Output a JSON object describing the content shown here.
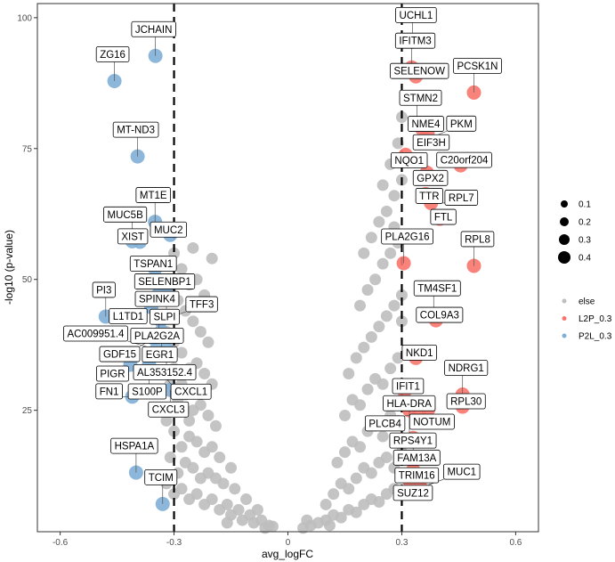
{
  "chart_data": {
    "type": "scatter",
    "title": "",
    "xlabel": "avg_logFC",
    "ylabel": "-log10 (p-value)",
    "xlim": [
      -0.66,
      0.66
    ],
    "ylim": [
      1.8,
      102.7
    ],
    "xticks": [
      -0.6,
      -0.3,
      0,
      0.3,
      0.6
    ],
    "xtick_labels": [
      "-0.6",
      "-0.3",
      "0",
      "0.3",
      "0.6"
    ],
    "yticks": [
      25,
      50,
      75,
      100
    ],
    "ytick_labels": [
      "25",
      "50",
      "75",
      "100"
    ],
    "threshold_lines_x": [
      -0.3,
      0.3
    ],
    "grid": false,
    "legend_position": "right",
    "size_legend": {
      "title": "",
      "values": [
        0.1,
        0.2,
        0.3,
        0.4
      ],
      "labels": [
        "0.1",
        "0.2",
        "0.3",
        "0.4"
      ]
    },
    "color_legend": {
      "title": "",
      "entries": [
        {
          "label": "else",
          "color": "#bebebe"
        },
        {
          "label": "L2P_0.3",
          "color": "#f8766d"
        },
        {
          "label": "P2L_0.3",
          "color": "#7fafd6"
        }
      ]
    },
    "series": [
      {
        "name": "else",
        "color": "#bebebe",
        "points": [
          [
            -0.05,
            3
          ],
          [
            -0.07,
            4
          ],
          [
            -0.09,
            3.5
          ],
          [
            -0.1,
            5
          ],
          [
            -0.12,
            4
          ],
          [
            -0.13,
            6
          ],
          [
            -0.15,
            5
          ],
          [
            -0.16,
            7
          ],
          [
            -0.18,
            6
          ],
          [
            -0.2,
            8
          ],
          [
            -0.22,
            7
          ],
          [
            -0.24,
            9
          ],
          [
            -0.26,
            8
          ],
          [
            -0.28,
            10
          ],
          [
            -0.3,
            9
          ],
          [
            -0.32,
            11
          ],
          [
            -0.11,
            8
          ],
          [
            -0.14,
            10
          ],
          [
            -0.17,
            11
          ],
          [
            -0.19,
            12
          ],
          [
            -0.21,
            13
          ],
          [
            -0.23,
            12
          ],
          [
            -0.25,
            14
          ],
          [
            -0.27,
            15
          ],
          [
            -0.29,
            13
          ],
          [
            -0.31,
            16
          ],
          [
            -0.15,
            14
          ],
          [
            -0.18,
            16
          ],
          [
            -0.2,
            18
          ],
          [
            -0.22,
            17
          ],
          [
            -0.24,
            19
          ],
          [
            -0.26,
            20
          ],
          [
            -0.28,
            18
          ],
          [
            -0.3,
            21
          ],
          [
            -0.32,
            23
          ],
          [
            -0.19,
            22
          ],
          [
            -0.21,
            24
          ],
          [
            -0.23,
            26
          ],
          [
            -0.25,
            25
          ],
          [
            -0.27,
            28
          ],
          [
            -0.29,
            27
          ],
          [
            -0.31,
            30
          ],
          [
            -0.2,
            30
          ],
          [
            -0.22,
            32
          ],
          [
            -0.24,
            34
          ],
          [
            -0.26,
            33
          ],
          [
            -0.28,
            36
          ],
          [
            -0.3,
            38
          ],
          [
            -0.32,
            40
          ],
          [
            -0.21,
            38
          ],
          [
            -0.23,
            40
          ],
          [
            -0.25,
            42
          ],
          [
            -0.27,
            44
          ],
          [
            -0.29,
            46
          ],
          [
            -0.31,
            48
          ],
          [
            -0.2,
            45
          ],
          [
            -0.22,
            47
          ],
          [
            -0.24,
            50
          ],
          [
            -0.26,
            49
          ],
          [
            -0.28,
            52
          ],
          [
            -0.3,
            55
          ],
          [
            -0.2,
            54
          ],
          [
            -0.25,
            56
          ],
          [
            -0.08,
            6
          ],
          [
            -0.06,
            2.5
          ],
          [
            -0.04,
            2.8
          ],
          [
            -0.16,
            3.5
          ],
          [
            -0.28,
            30
          ],
          [
            -0.3,
            33
          ],
          [
            -0.26,
            23
          ],
          [
            0.04,
            2.5
          ],
          [
            0.06,
            3
          ],
          [
            0.08,
            3.5
          ],
          [
            0.1,
            4
          ],
          [
            0.12,
            5
          ],
          [
            0.14,
            4.5
          ],
          [
            0.16,
            6
          ],
          [
            0.18,
            5.5
          ],
          [
            0.2,
            7
          ],
          [
            0.22,
            8
          ],
          [
            0.24,
            7.5
          ],
          [
            0.26,
            9
          ],
          [
            0.28,
            10
          ],
          [
            0.3,
            9
          ],
          [
            0.1,
            7
          ],
          [
            0.12,
            9
          ],
          [
            0.14,
            11
          ],
          [
            0.16,
            10
          ],
          [
            0.18,
            12
          ],
          [
            0.2,
            14
          ],
          [
            0.22,
            13
          ],
          [
            0.24,
            15
          ],
          [
            0.26,
            16
          ],
          [
            0.28,
            14
          ],
          [
            0.3,
            17
          ],
          [
            0.13,
            15
          ],
          [
            0.15,
            17
          ],
          [
            0.17,
            19
          ],
          [
            0.19,
            18
          ],
          [
            0.21,
            21
          ],
          [
            0.23,
            22
          ],
          [
            0.25,
            20
          ],
          [
            0.27,
            24
          ],
          [
            0.29,
            23
          ],
          [
            0.15,
            24
          ],
          [
            0.17,
            27
          ],
          [
            0.19,
            26
          ],
          [
            0.21,
            29
          ],
          [
            0.23,
            31
          ],
          [
            0.25,
            30
          ],
          [
            0.27,
            33
          ],
          [
            0.29,
            35
          ],
          [
            0.16,
            32
          ],
          [
            0.18,
            35
          ],
          [
            0.2,
            37
          ],
          [
            0.22,
            39
          ],
          [
            0.24,
            41
          ],
          [
            0.26,
            43
          ],
          [
            0.28,
            45
          ],
          [
            0.3,
            47
          ],
          [
            0.19,
            45
          ],
          [
            0.21,
            48
          ],
          [
            0.23,
            50
          ],
          [
            0.25,
            53
          ],
          [
            0.27,
            55
          ],
          [
            0.29,
            57
          ],
          [
            0.2,
            55
          ],
          [
            0.22,
            58
          ],
          [
            0.24,
            61
          ],
          [
            0.26,
            63
          ],
          [
            0.28,
            66
          ],
          [
            0.3,
            69
          ],
          [
            0.27,
            72
          ],
          [
            0.29,
            76
          ],
          [
            0.25,
            68
          ],
          [
            0.3,
            81
          ],
          [
            0.28,
            60
          ],
          [
            0.05,
            4
          ],
          [
            0.11,
            3
          ],
          [
            0.3,
            42
          ]
        ]
      },
      {
        "name": "P2L_0.3",
        "color": "#7fafd6",
        "points": [
          {
            "label": "JCHAIN",
            "x": -0.349,
            "y": 92.7
          },
          {
            "label": "ZG16",
            "x": -0.457,
            "y": 87.9
          },
          {
            "label": "MT-ND3",
            "x": -0.396,
            "y": 73.5
          },
          {
            "label": "MT1E",
            "x": -0.35,
            "y": 61
          },
          {
            "label": "MUC2",
            "x": -0.31,
            "y": 58.5
          },
          {
            "label": "MUC5B",
            "x": -0.41,
            "y": 57.3
          },
          {
            "label": "XIST",
            "x": -0.39,
            "y": 57.2
          },
          {
            "label": "TSPAN1",
            "x": -0.35,
            "y": 52
          },
          {
            "label": "SELENBP1",
            "x": -0.32,
            "y": 48.6
          },
          {
            "label": "SPINK4",
            "x": -0.34,
            "y": 47.3
          },
          {
            "label": "SLPI",
            "x": -0.32,
            "y": 46.6
          },
          {
            "label": "L1TD1",
            "x": -0.36,
            "y": 44.7
          },
          {
            "label": "PLA2G2A",
            "x": -0.34,
            "y": 43
          },
          {
            "label": "TFF3",
            "x": -0.335,
            "y": 42.2
          },
          {
            "label": "PI3",
            "x": -0.48,
            "y": 42.9
          },
          {
            "label": "EGR1",
            "x": -0.333,
            "y": 40.1
          },
          {
            "label": "GDF15",
            "x": -0.354,
            "y": 38.8
          },
          {
            "label": "AC009951.4",
            "x": -0.347,
            "y": 36.6
          },
          {
            "label": "AL353152.4",
            "x": -0.32,
            "y": 36.7
          },
          {
            "label": "PIGR",
            "x": -0.415,
            "y": 33.7
          },
          {
            "label": "S100P",
            "x": -0.366,
            "y": 33.7
          },
          {
            "label": "CXCL1",
            "x": -0.335,
            "y": 32.3
          },
          {
            "label": "CXCL3",
            "x": -0.31,
            "y": 28.9
          },
          {
            "label": "FN1",
            "x": -0.41,
            "y": 27.6
          },
          {
            "label": "HSPA1A",
            "x": -0.4,
            "y": 13.1
          },
          {
            "label": "TCIM",
            "x": -0.33,
            "y": 7.1
          }
        ]
      },
      {
        "name": "L2P_0.3",
        "color": "#f8766d",
        "points": [
          {
            "label": "UCHL1",
            "x": 0.328,
            "y": 95.4
          },
          {
            "label": "IFITM3",
            "x": 0.326,
            "y": 90.5
          },
          {
            "label": "SELENOW",
            "x": 0.337,
            "y": 88.8
          },
          {
            "label": "PCSK1N",
            "x": 0.49,
            "y": 85.7
          },
          {
            "label": "STMN2",
            "x": 0.34,
            "y": 79.6
          },
          {
            "label": "NME4",
            "x": 0.354,
            "y": 78.7
          },
          {
            "label": "EIF3H",
            "x": 0.368,
            "y": 77.9
          },
          {
            "label": "PKM",
            "x": 0.363,
            "y": 76.7
          },
          {
            "label": "NQO1",
            "x": 0.31,
            "y": 73.8
          },
          {
            "label": "C20orf204",
            "x": 0.455,
            "y": 71.8
          },
          {
            "label": "GPX2",
            "x": 0.366,
            "y": 70.4
          },
          {
            "label": "TTR",
            "x": 0.363,
            "y": 66.3
          },
          {
            "label": "RPL7",
            "x": 0.377,
            "y": 64.6
          },
          {
            "label": "FTL",
            "x": 0.4,
            "y": 61.6
          },
          {
            "label": "PLA2G16",
            "x": 0.305,
            "y": 53.1
          },
          {
            "label": "RPL8",
            "x": 0.49,
            "y": 52.6
          },
          {
            "label": "TM4SF1",
            "x": 0.384,
            "y": 43.2
          },
          {
            "label": "COL9A3",
            "x": 0.39,
            "y": 42.2
          },
          {
            "label": "NKD1",
            "x": 0.337,
            "y": 35
          },
          {
            "label": "IFIT1",
            "x": 0.307,
            "y": 28.6
          },
          {
            "label": "NDRG1",
            "x": 0.46,
            "y": 28
          },
          {
            "label": "RPL30",
            "x": 0.46,
            "y": 25.7
          },
          {
            "label": "NOTUM",
            "x": 0.37,
            "y": 25.2
          },
          {
            "label": "HLA-DRA",
            "x": 0.31,
            "y": 26
          },
          {
            "label": "RPS4Y1",
            "x": 0.32,
            "y": 25
          },
          {
            "label": "PLCB4",
            "x": 0.345,
            "y": 24.2
          },
          {
            "label": "FAM13A",
            "x": 0.33,
            "y": 19.7
          },
          {
            "label": "TRIM16",
            "x": 0.33,
            "y": 13.6
          },
          {
            "label": "SUZ12",
            "x": 0.32,
            "y": 11.6
          },
          {
            "label": "MUC1",
            "x": 0.35,
            "y": 10.2
          }
        ]
      }
    ]
  }
}
